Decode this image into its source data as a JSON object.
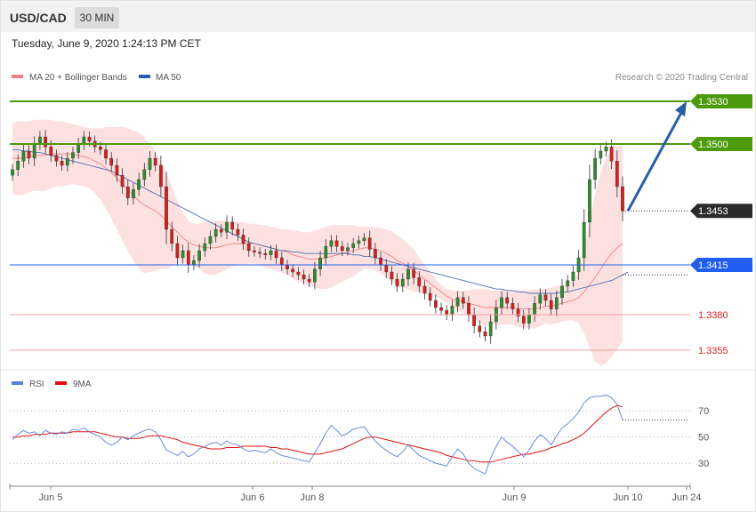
{
  "header": {
    "symbol": "USD/CAD",
    "timeframe": "30 MIN"
  },
  "timestamp": "Tuesday, June 9, 2020 1:24:13 PM CET",
  "legend": {
    "items": [
      {
        "label": "MA 20 + Bollinger Bands",
        "color": "#f08080"
      },
      {
        "label": "MA 50",
        "color": "#2a5db0"
      }
    ],
    "credit": "Research © 2020 Trading Central"
  },
  "rsi_legend": {
    "items": [
      {
        "label": "RSI",
        "color": "#5b7fd6"
      },
      {
        "label": "9MA",
        "color": "#e01010"
      }
    ]
  },
  "chart_data": [
    {
      "type": "candlestick",
      "title": "",
      "x_axis": {
        "ticks": [
          "Jun 5",
          "Jun 6",
          "Jun 8",
          "Jun 9",
          "Jun 10",
          "Jun 24"
        ]
      },
      "ylim": [
        1.3345,
        1.354
      ],
      "levels": [
        {
          "label": "1.3530",
          "value": 1.353,
          "kind": "resistance",
          "color": "#4c9a0a"
        },
        {
          "label": "1.3500",
          "value": 1.35,
          "kind": "resistance",
          "color": "#4c9a0a"
        },
        {
          "label": "1.3453",
          "value": 1.3453,
          "kind": "current",
          "color": "#333333"
        },
        {
          "label": "1.3415",
          "value": 1.3415,
          "kind": "pivot",
          "color": "#1f5ef0"
        },
        {
          "label": "1.3380",
          "value": 1.338,
          "kind": "support",
          "color": "#e05050"
        },
        {
          "label": "1.3355",
          "value": 1.3355,
          "kind": "support",
          "color": "#e05050"
        }
      ],
      "forecast_arrow": {
        "from": 1.3453,
        "to": 1.353,
        "color": "#2a5ca8"
      },
      "series": [
        {
          "name": "Close",
          "values": [
            1.3482,
            1.3488,
            1.3495,
            1.349,
            1.35,
            1.3505,
            1.3498,
            1.3492,
            1.3488,
            1.3485,
            1.349,
            1.3494,
            1.35,
            1.3505,
            1.3502,
            1.3498,
            1.3496,
            1.349,
            1.3485,
            1.3478,
            1.347,
            1.3462,
            1.3468,
            1.3475,
            1.3482,
            1.349,
            1.3485,
            1.347,
            1.344,
            1.343,
            1.342,
            1.3425,
            1.3415,
            1.3418,
            1.3425,
            1.343,
            1.3435,
            1.344,
            1.3438,
            1.3445,
            1.344,
            1.3436,
            1.343,
            1.3425,
            1.3424,
            1.3423,
            1.3422,
            1.3425,
            1.342,
            1.3415,
            1.3412,
            1.341,
            1.3408,
            1.3405,
            1.3403,
            1.3412,
            1.342,
            1.3428,
            1.3432,
            1.3428,
            1.3425,
            1.3427,
            1.343,
            1.3432,
            1.3434,
            1.3426,
            1.342,
            1.3415,
            1.341,
            1.3405,
            1.34,
            1.3405,
            1.3412,
            1.3406,
            1.34,
            1.3395,
            1.339,
            1.3385,
            1.3383,
            1.338,
            1.3386,
            1.3392,
            1.3388,
            1.338,
            1.3372,
            1.3368,
            1.3365,
            1.3375,
            1.3385,
            1.3392,
            1.3388,
            1.3384,
            1.3379,
            1.3374,
            1.338,
            1.3388,
            1.3394,
            1.339,
            1.3384,
            1.3392,
            1.34,
            1.3404,
            1.341,
            1.342,
            1.3445,
            1.3475,
            1.349,
            1.3495,
            1.3498,
            1.3488,
            1.347,
            1.3453
          ]
        },
        {
          "name": "MA 20",
          "values": [
            1.349,
            1.349,
            1.349,
            1.3491,
            1.3492,
            1.3492,
            1.3492,
            1.3493,
            1.3493,
            1.3493,
            1.3493,
            1.3493,
            1.3492,
            1.3491,
            1.349,
            1.3488,
            1.3486,
            1.3483,
            1.348,
            1.3476,
            1.3472,
            1.3468,
            1.3464,
            1.346,
            1.3457,
            1.3455,
            1.3453,
            1.345,
            1.3446,
            1.3442,
            1.3438,
            1.3434,
            1.3431,
            1.3429,
            1.3428,
            1.3427,
            1.3427,
            1.3427,
            1.3428,
            1.3429,
            1.343,
            1.343,
            1.343,
            1.343,
            1.343,
            1.3429,
            1.3428,
            1.3427,
            1.3426,
            1.3425,
            1.3424,
            1.3422,
            1.3421,
            1.342,
            1.3419,
            1.3419,
            1.3419,
            1.342,
            1.3421,
            1.3422,
            1.3423,
            1.3424,
            1.3425,
            1.3426,
            1.3427,
            1.3427,
            1.3426,
            1.3425,
            1.3423,
            1.3421,
            1.3418,
            1.3416,
            1.3414,
            1.3411,
            1.3408,
            1.3405,
            1.3402,
            1.3399,
            1.3396,
            1.3393,
            1.3391,
            1.339,
            1.3389,
            1.3388,
            1.3387,
            1.3386,
            1.3385,
            1.3385,
            1.3385,
            1.3385,
            1.3385,
            1.3385,
            1.3384,
            1.3384,
            1.3384,
            1.3384,
            1.3385,
            1.3386,
            1.3386,
            1.3387,
            1.3388,
            1.3389,
            1.339,
            1.3392,
            1.3396,
            1.3401,
            1.3406,
            1.3412,
            1.3418,
            1.3423,
            1.3427,
            1.343
          ]
        },
        {
          "name": "MA 50",
          "values": [
            1.3496,
            1.3496,
            1.3495,
            1.3495,
            1.3494,
            1.3494,
            1.3493,
            1.3492,
            1.3491,
            1.349,
            1.3489,
            1.3488,
            1.3487,
            1.3486,
            1.3485,
            1.3484,
            1.3483,
            1.3482,
            1.3481,
            1.3479,
            1.3477,
            1.3475,
            1.3473,
            1.3471,
            1.3469,
            1.3467,
            1.3465,
            1.3463,
            1.3461,
            1.3459,
            1.3457,
            1.3455,
            1.3453,
            1.3451,
            1.3449,
            1.3447,
            1.3445,
            1.3443,
            1.3441,
            1.3439,
            1.3437,
            1.3435,
            1.3433,
            1.3431,
            1.343,
            1.3429,
            1.3428,
            1.3427,
            1.3426,
            1.3425,
            1.3425,
            1.3424,
            1.3424,
            1.3423,
            1.3423,
            1.3423,
            1.3423,
            1.3423,
            1.3423,
            1.3423,
            1.3423,
            1.3423,
            1.3422,
            1.3422,
            1.3421,
            1.3421,
            1.342,
            1.3419,
            1.3418,
            1.3417,
            1.3416,
            1.3415,
            1.3414,
            1.3413,
            1.3412,
            1.3411,
            1.341,
            1.3409,
            1.3408,
            1.3407,
            1.3406,
            1.3405,
            1.3404,
            1.3403,
            1.3402,
            1.3401,
            1.34,
            1.3399,
            1.3398,
            1.3398,
            1.3397,
            1.3397,
            1.3396,
            1.3396,
            1.3395,
            1.3395,
            1.3395,
            1.3395,
            1.3395,
            1.3395,
            1.3396,
            1.3396,
            1.3397,
            1.3398,
            1.3399,
            1.34,
            1.3401,
            1.3402,
            1.3403,
            1.3404,
            1.3406,
            1.3408,
            1.341
          ]
        },
        {
          "name": "Upper Band",
          "values": [
            1.3515,
            1.3516,
            1.3516,
            1.3516,
            1.3517,
            1.3517,
            1.3517,
            1.3517,
            1.3516,
            1.3516,
            1.3515,
            1.3514,
            1.3513,
            1.3512,
            1.3511,
            1.3511,
            1.3511,
            1.3512,
            1.3512,
            1.3512,
            1.3512,
            1.3511,
            1.351,
            1.3508,
            1.3505,
            1.35,
            1.3495,
            1.3488,
            1.348,
            1.347,
            1.346,
            1.3452,
            1.3446,
            1.3444,
            1.3444,
            1.3445,
            1.3446,
            1.3446,
            1.3446,
            1.3446,
            1.3446,
            1.3445,
            1.3445,
            1.3444,
            1.3444,
            1.3443,
            1.3443,
            1.3442,
            1.3441,
            1.344,
            1.344,
            1.3439,
            1.3439,
            1.3438,
            1.3438,
            1.3439,
            1.344,
            1.3442,
            1.3443,
            1.3443,
            1.3443,
            1.3443,
            1.3443,
            1.3442,
            1.3442,
            1.3442,
            1.3441,
            1.3441,
            1.344,
            1.3439,
            1.3436,
            1.3433,
            1.343,
            1.3426,
            1.342,
            1.3415,
            1.341,
            1.3405,
            1.3401,
            1.3398,
            1.3397,
            1.3397,
            1.3397,
            1.3397,
            1.3398,
            1.3398,
            1.3398,
            1.3397,
            1.3397,
            1.3397,
            1.3397,
            1.3397,
            1.3397,
            1.3397,
            1.3397,
            1.3398,
            1.3398,
            1.3398,
            1.3399,
            1.34,
            1.3401,
            1.3402,
            1.3404,
            1.341,
            1.3425,
            1.3445,
            1.3465,
            1.348,
            1.349,
            1.3496,
            1.3498,
            1.3499
          ]
        },
        {
          "name": "Lower Band",
          "values": [
            1.3465,
            1.3464,
            1.3464,
            1.3466,
            1.3467,
            1.3467,
            1.3467,
            1.3469,
            1.347,
            1.347,
            1.3471,
            1.3472,
            1.3471,
            1.347,
            1.3469,
            1.3465,
            1.3461,
            1.3454,
            1.3448,
            1.344,
            1.3432,
            1.3425,
            1.3418,
            1.3412,
            1.3409,
            1.341,
            1.3411,
            1.3412,
            1.3412,
            1.3414,
            1.3416,
            1.3416,
            1.3416,
            1.3414,
            1.3412,
            1.3409,
            1.3408,
            1.3408,
            1.341,
            1.3412,
            1.3414,
            1.3415,
            1.3415,
            1.3416,
            1.3416,
            1.3415,
            1.3413,
            1.3412,
            1.3411,
            1.341,
            1.3408,
            1.3405,
            1.3403,
            1.3402,
            1.34,
            1.3399,
            1.3398,
            1.3398,
            1.3399,
            1.3401,
            1.3403,
            1.3405,
            1.3407,
            1.341,
            1.3412,
            1.3412,
            1.3411,
            1.3409,
            1.3406,
            1.3403,
            1.34,
            1.3399,
            1.3398,
            1.3396,
            1.3396,
            1.3395,
            1.3394,
            1.3393,
            1.3391,
            1.3388,
            1.3385,
            1.3383,
            1.3381,
            1.3379,
            1.3376,
            1.3374,
            1.3372,
            1.3373,
            1.3373,
            1.3373,
            1.3373,
            1.3373,
            1.3371,
            1.3371,
            1.3371,
            1.337,
            1.3372,
            1.3374,
            1.3373,
            1.3374,
            1.3375,
            1.3376,
            1.3376,
            1.3374,
            1.3367,
            1.3357,
            1.3347,
            1.3344,
            1.3346,
            1.335,
            1.3356,
            1.3361
          ]
        }
      ]
    },
    {
      "type": "line",
      "title": "",
      "ylim": [
        20,
        85
      ],
      "y_ticks": [
        70,
        50,
        30
      ],
      "series": [
        {
          "name": "RSI",
          "values": [
            48,
            52,
            55,
            53,
            54,
            51,
            55,
            53,
            52,
            54,
            53,
            56,
            55,
            57,
            54,
            52,
            50,
            46,
            44,
            46,
            50,
            48,
            51,
            53,
            55,
            56,
            54,
            48,
            40,
            38,
            36,
            39,
            35,
            37,
            41,
            43,
            45,
            46,
            44,
            47,
            45,
            44,
            41,
            39,
            40,
            39,
            38,
            41,
            38,
            36,
            35,
            34,
            33,
            32,
            31,
            38,
            45,
            53,
            59,
            55,
            51,
            53,
            56,
            57,
            58,
            52,
            47,
            43,
            40,
            37,
            35,
            39,
            44,
            40,
            36,
            34,
            32,
            30,
            29,
            28,
            35,
            41,
            37,
            30,
            26,
            24,
            22,
            34,
            43,
            50,
            46,
            43,
            39,
            35,
            40,
            47,
            52,
            49,
            44,
            51,
            57,
            60,
            64,
            69,
            76,
            80,
            81,
            81,
            82,
            80,
            75,
            63
          ]
        },
        {
          "name": "9MA",
          "values": [
            50,
            50,
            51,
            51,
            52,
            52,
            52,
            53,
            53,
            53,
            53,
            54,
            54,
            54,
            54,
            54,
            53,
            52,
            51,
            50,
            50,
            49,
            49,
            49,
            50,
            51,
            51,
            51,
            50,
            49,
            48,
            46,
            45,
            44,
            43,
            42,
            41,
            41,
            41,
            42,
            42,
            42,
            43,
            43,
            43,
            43,
            43,
            42,
            42,
            41,
            41,
            40,
            39,
            38,
            37,
            37,
            37,
            38,
            39,
            40,
            41,
            43,
            45,
            47,
            49,
            50,
            50,
            49,
            48,
            47,
            46,
            45,
            44,
            43,
            42,
            41,
            40,
            39,
            38,
            36,
            35,
            34,
            33,
            32,
            32,
            31,
            31,
            31,
            32,
            33,
            34,
            35,
            36,
            37,
            37,
            38,
            39,
            40,
            42,
            43,
            45,
            46,
            48,
            50,
            53,
            57,
            61,
            65,
            69,
            72,
            74,
            73
          ]
        }
      ]
    }
  ]
}
